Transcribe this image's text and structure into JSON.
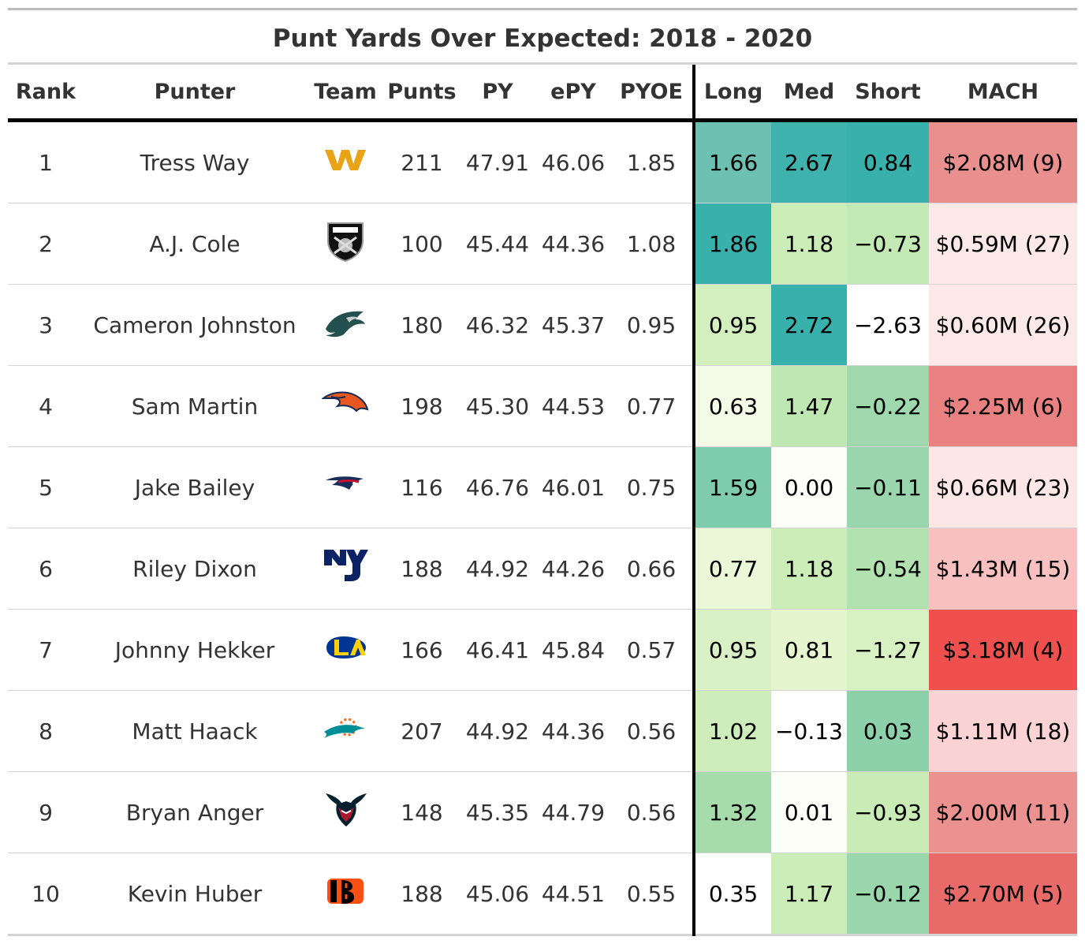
{
  "chart_data": {
    "type": "table",
    "title": "Punt Yards Over Expected: 2018 - 2020",
    "columns": [
      "Rank",
      "Punter",
      "Team",
      "Punts",
      "PY",
      "ePY",
      "PYOE",
      "Long",
      "Med",
      "Short",
      "MACH"
    ],
    "rows": [
      {
        "rank": "1",
        "punter": "Tress Way",
        "team_icon": "washington-w-logo-icon",
        "punts": "211",
        "py": "47.91",
        "epy": "46.06",
        "pyoe": "1.85",
        "long": "1.66",
        "med": "2.67",
        "short": "0.84",
        "mach": "$2.08M (9)",
        "colors": {
          "long": "#6dc1b3",
          "med": "#3fb2ad",
          "short": "#38b0ab",
          "mach": "#e98f8d"
        }
      },
      {
        "rank": "2",
        "punter": "A.J. Cole",
        "team_icon": "raiders-shield-logo-icon",
        "punts": "100",
        "py": "45.44",
        "epy": "44.36",
        "pyoe": "1.08",
        "long": "1.86",
        "med": "1.18",
        "short": "−0.73",
        "mach": "$0.59M (27)",
        "colors": {
          "long": "#38b0ab",
          "med": "#cbedb8",
          "short": "#c3e9b4",
          "mach": "#fde8e8"
        }
      },
      {
        "rank": "3",
        "punter": "Cameron Johnston",
        "team_icon": "eagles-head-logo-icon",
        "punts": "180",
        "py": "46.32",
        "epy": "45.37",
        "pyoe": "0.95",
        "long": "0.95",
        "med": "2.72",
        "short": "−2.63",
        "mach": "$0.60M (26)",
        "colors": {
          "long": "#d2efbd",
          "med": "#38b0ab",
          "short": "#ffffff",
          "mach": "#fde8e8"
        }
      },
      {
        "rank": "4",
        "punter": "Sam Martin",
        "team_icon": "broncos-horse-logo-icon",
        "punts": "198",
        "py": "45.30",
        "epy": "44.53",
        "pyoe": "0.77",
        "long": "0.63",
        "med": "1.47",
        "short": "−0.22",
        "mach": "$2.25M (6)",
        "colors": {
          "long": "#f3fbe6",
          "med": "#bee7b1",
          "short": "#9ed8ac",
          "mach": "#e98180"
        }
      },
      {
        "rank": "5",
        "punter": "Jake Bailey",
        "team_icon": "patriots-flying-elvis-logo-icon",
        "punts": "116",
        "py": "46.76",
        "epy": "46.01",
        "pyoe": "0.75",
        "long": "1.59",
        "med": "0.00",
        "short": "−0.11",
        "mach": "$0.66M (23)",
        "colors": {
          "long": "#7ecbad",
          "med": "#fcfef7",
          "short": "#9ad6ad",
          "mach": "#fde6e6"
        }
      },
      {
        "rank": "6",
        "punter": "Riley Dixon",
        "team_icon": "giants-ny-logo-icon",
        "punts": "188",
        "py": "44.92",
        "epy": "44.26",
        "pyoe": "0.66",
        "long": "0.77",
        "med": "1.18",
        "short": "−0.54",
        "mach": "$1.43M (15)",
        "colors": {
          "long": "#eaf8d7",
          "med": "#cbedb8",
          "short": "#b1e2b0",
          "mach": "#f8c0bf"
        }
      },
      {
        "rank": "7",
        "punter": "Johnny Hekker",
        "team_icon": "rams-la-logo-icon",
        "punts": "166",
        "py": "46.41",
        "epy": "45.84",
        "pyoe": "0.57",
        "long": "0.95",
        "med": "0.81",
        "short": "−1.27",
        "mach": "$3.18M (4)",
        "colors": {
          "long": "#d9f1c5",
          "med": "#e5f6cf",
          "short": "#d8f1c3",
          "mach": "#ef504d"
        }
      },
      {
        "rank": "8",
        "punter": "Matt Haack",
        "team_icon": "dolphins-logo-icon",
        "punts": "207",
        "py": "44.92",
        "epy": "44.36",
        "pyoe": "0.56",
        "long": "1.02",
        "med": "−0.13",
        "short": "0.03",
        "mach": "$1.11M (18)",
        "colors": {
          "long": "#cdedba",
          "med": "#ffffff",
          "short": "#8dd1ab",
          "mach": "#fcd3d4"
        }
      },
      {
        "rank": "9",
        "punter": "Bryan Anger",
        "team_icon": "texans-bull-logo-icon",
        "punts": "148",
        "py": "45.35",
        "epy": "44.79",
        "pyoe": "0.56",
        "long": "1.32",
        "med": "0.01",
        "short": "−0.93",
        "mach": "$2.00M (11)",
        "colors": {
          "long": "#a6dbac",
          "med": "#fcfef7",
          "short": "#c9ebb6",
          "mach": "#eb9290"
        }
      },
      {
        "rank": "10",
        "punter": "Kevin Huber",
        "team_icon": "bengals-stripes-logo-icon",
        "punts": "188",
        "py": "45.06",
        "epy": "44.51",
        "pyoe": "0.55",
        "long": "0.35",
        "med": "1.17",
        "short": "−0.12",
        "mach": "$2.70M (5)",
        "colors": {
          "long": "#ffffff",
          "med": "#cbedb8",
          "short": "#9bd7ad",
          "mach": "#e86b69"
        }
      }
    ]
  }
}
